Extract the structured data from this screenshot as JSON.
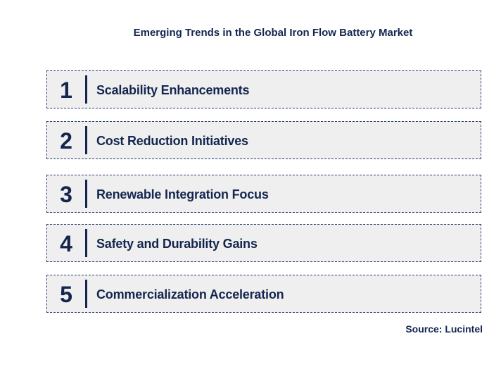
{
  "title": "Emerging Trends in the Global Iron Flow Battery Market",
  "items": [
    {
      "number": "1",
      "label": "Scalability Enhancements"
    },
    {
      "number": "2",
      "label": "Cost Reduction Initiatives"
    },
    {
      "number": "3",
      "label": "Renewable Integration Focus"
    },
    {
      "number": "4",
      "label": "Safety and Durability Gains"
    },
    {
      "number": "5",
      "label": "Commercialization Acceleration"
    }
  ],
  "source": "Source: Lucintel"
}
